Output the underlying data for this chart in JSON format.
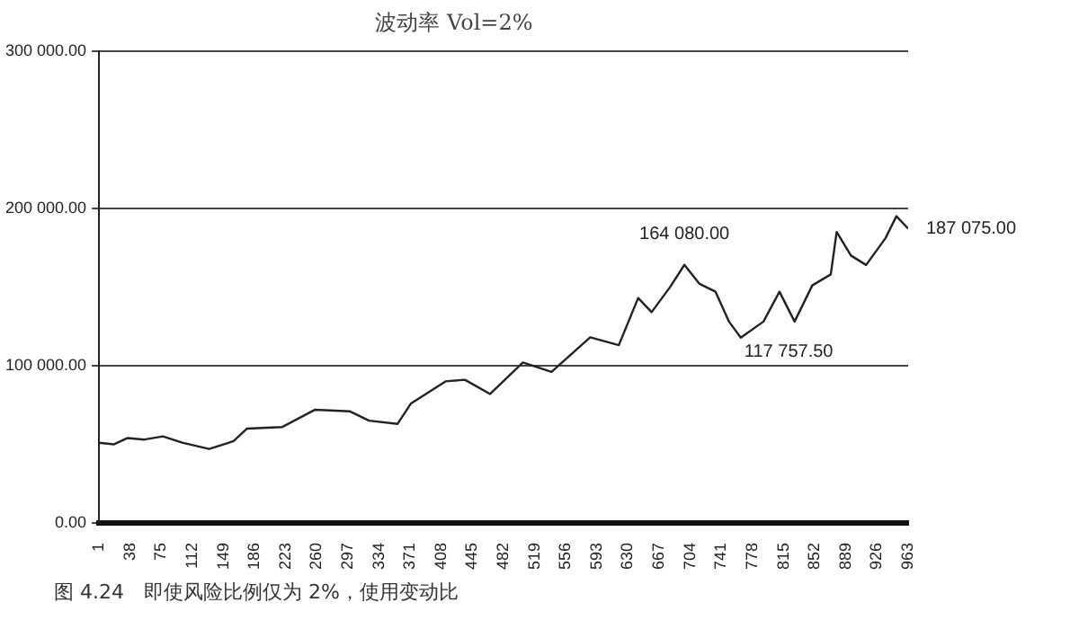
{
  "chart_data": {
    "type": "line",
    "title": "波动率 Vol=2%",
    "x": [
      1,
      19,
      35,
      55,
      77,
      100,
      132,
      161,
      177,
      219,
      258,
      299,
      322,
      356,
      372,
      413,
      436,
      466,
      505,
      539,
      585,
      619,
      642,
      658,
      680,
      697,
      715,
      734,
      750,
      764,
      791,
      810,
      828,
      849,
      871,
      878,
      895,
      913,
      936,
      949,
      963
    ],
    "series": [
      {
        "color": "#222222",
        "values": [
          51000,
          50000,
          54000,
          53000,
          55000,
          51000,
          47000,
          52000,
          60000,
          61000,
          72000,
          71000,
          65000,
          63000,
          76000,
          90000,
          91000,
          82000,
          102000,
          96000,
          118000,
          113000,
          143000,
          134000,
          150000,
          164080,
          152000,
          147000,
          128000,
          117757.5,
          128000,
          147000,
          128000,
          151000,
          158000,
          185000,
          170000,
          164000,
          181000,
          195000,
          187075
        ]
      }
    ],
    "xlim": [
      1,
      963
    ],
    "xticks": [
      1,
      38,
      75,
      112,
      149,
      186,
      223,
      260,
      297,
      334,
      371,
      408,
      445,
      482,
      519,
      556,
      593,
      630,
      667,
      704,
      741,
      778,
      815,
      852,
      889,
      926,
      963
    ],
    "ylim": [
      0,
      300000
    ],
    "yticks": [
      {
        "value": 0,
        "label": "0.00"
      },
      {
        "value": 100000,
        "label": "100 000.00"
      },
      {
        "value": 200000,
        "label": "200 000.00"
      },
      {
        "value": 300000,
        "label": "300 000.00"
      }
    ],
    "grid": "y",
    "legend": false,
    "marker": "none",
    "line_style": "solid",
    "annotations": [
      {
        "text": "164 080.00",
        "x": 697,
        "y": 164080
      },
      {
        "text": "117 757.50",
        "x": 764,
        "y": 117757.5
      },
      {
        "text": "187 075.00",
        "x": 963,
        "y": 187075
      },
      "图 4.24　即使风险比例仅为 2%，使用变动比"
    ]
  }
}
